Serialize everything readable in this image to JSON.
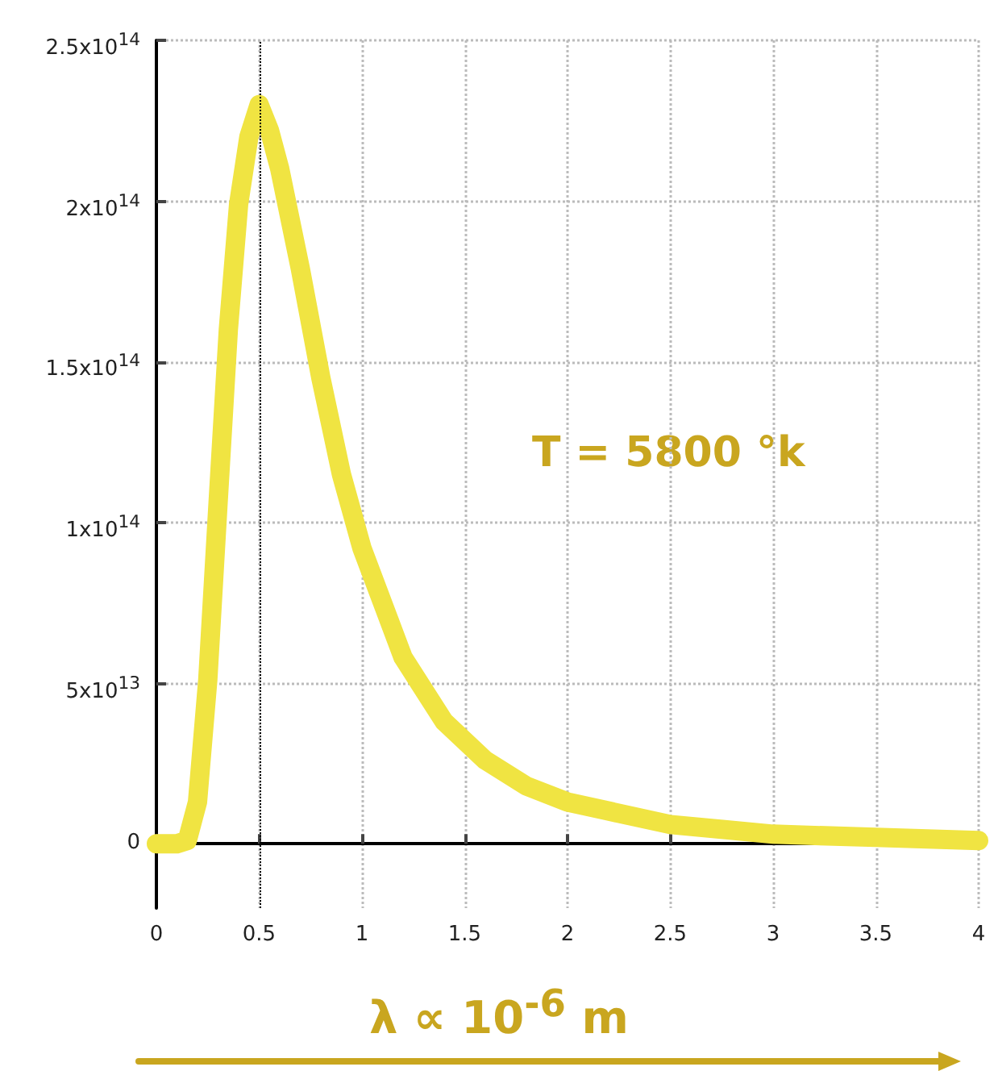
{
  "chart_data": {
    "type": "line",
    "xlabel": "λ ∝ 10$^{-6}$ m",
    "annotations": [
      "T = 5800 °k"
    ],
    "x": [
      0,
      0.1,
      0.15,
      0.2,
      0.25,
      0.3,
      0.35,
      0.4,
      0.45,
      0.5,
      0.55,
      0.6,
      0.7,
      0.8,
      0.9,
      1.0,
      1.2,
      1.4,
      1.6,
      1.8,
      2.0,
      2.5,
      3.0,
      3.5,
      4.0
    ],
    "series": [
      {
        "color": "#f0e442",
        "values": [
          0,
          0,
          1000000000000.0,
          13000000000000.0,
          51000000000000.0,
          106000000000000.0,
          160000000000000.0,
          199000000000000.0,
          220000000000000.0,
          230000000000000.0,
          222000000000000.0,
          210000000000000.0,
          179000000000000.0,
          145000000000000.0,
          115000000000000.0,
          92000000000000.0,
          58000000000000.0,
          38000000000000.0,
          26000000000000.0,
          18000000000000.0,
          13000000000000.0,
          6000000000000.0,
          3000000000000.0,
          2000000000000.0,
          1000000000000.0
        ]
      }
    ],
    "xlim": [
      0,
      4
    ],
    "xticks": [
      0,
      0.5,
      1,
      1.5,
      2,
      2.5,
      3,
      3.5,
      4
    ],
    "ylim": [
      -20000000000000.0,
      250000000000000.0
    ],
    "yticks": [
      0,
      {
        "value": 50000000000000.0,
        "label": "5x10$^{13}$"
      },
      {
        "value": 100000000000000.0,
        "label": "1x10$^{14}$"
      },
      {
        "value": 150000000000000.0,
        "label": "1.5x10$^{14}$"
      },
      {
        "value": 200000000000000.0,
        "label": "2x10$^{14}$"
      },
      {
        "value": 250000000000000.0,
        "label": "2.5x10$^{14}$"
      }
    ],
    "ref_lines": [
      {
        "axis": "x",
        "value": 0.5,
        "color": "#000000",
        "line_style": "dotted"
      }
    ],
    "grid": true
  }
}
